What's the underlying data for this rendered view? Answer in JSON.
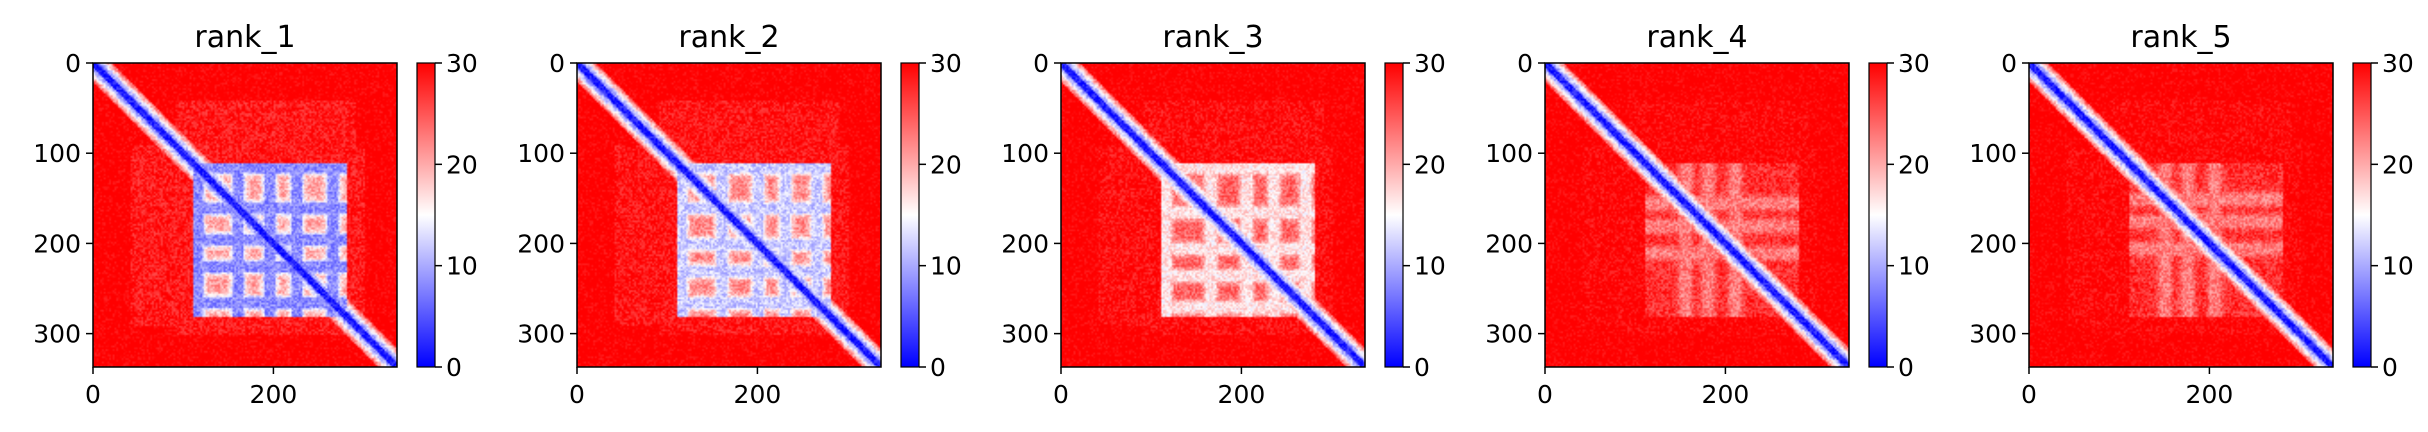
{
  "chart_data": {
    "type": "heatmap",
    "description_of_layout": "",
    "panels": [
      {
        "title": "rank_1",
        "interface": {
          "range": [
            110,
            280
          ],
          "strength": 0.95,
          "bands": [
            115,
            160,
            195,
            225,
            265
          ]
        }
      },
      {
        "title": "rank_2",
        "interface": {
          "range": [
            110,
            280
          ],
          "strength": 0.8,
          "bands": [
            115,
            160,
            200,
            230,
            265
          ]
        }
      },
      {
        "title": "rank_3",
        "interface": {
          "range": [
            110,
            280
          ],
          "strength": 0.6,
          "bands": [
            115,
            165,
            205,
            235,
            270
          ]
        }
      },
      {
        "title": "rank_4",
        "interface": {
          "range": [
            110,
            280
          ],
          "strength": 0.35,
          "bands": [
            155,
            180,
            210
          ]
        }
      },
      {
        "title": "rank_5",
        "interface": {
          "range": [
            110,
            280
          ],
          "strength": 0.35,
          "bands": [
            150,
            175,
            205
          ]
        }
      }
    ],
    "x_ticks": [
      "0",
      "200"
    ],
    "y_ticks": [
      "0",
      "100",
      "200",
      "300"
    ],
    "colorbar_ticks": [
      "0",
      "10",
      "20",
      "30"
    ],
    "x_range": [
      0,
      337
    ],
    "y_range": [
      0,
      337
    ],
    "value_range": [
      0,
      30
    ],
    "colormap": [
      "#0000ff",
      "#ffffff",
      "#ff0000"
    ]
  }
}
